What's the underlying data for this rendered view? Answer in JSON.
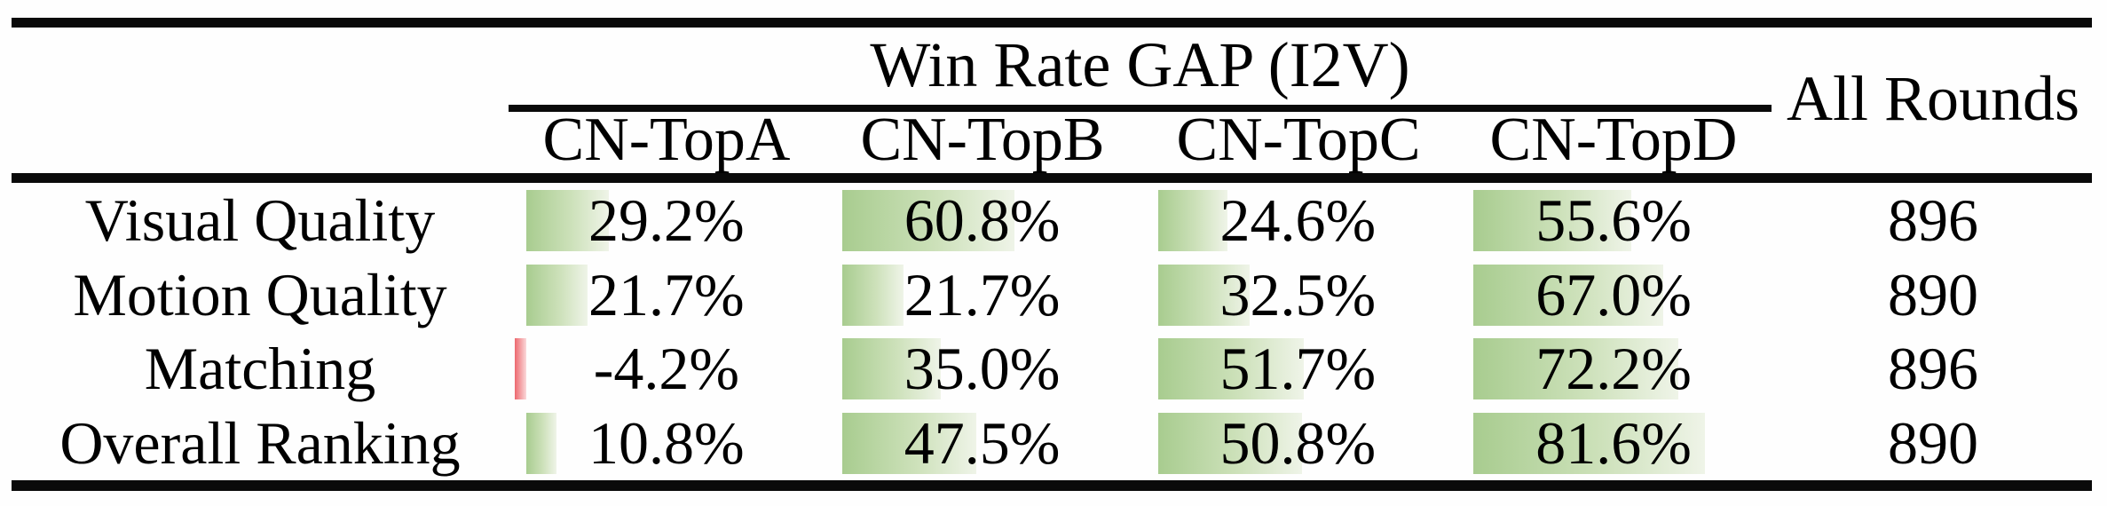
{
  "table": {
    "group_header": "Win Rate GAP (I2V)",
    "all_rounds_header": "All Rounds",
    "columns": [
      "CN-TopA",
      "CN-TopB",
      "CN-TopC",
      "CN-TopD"
    ],
    "rows": [
      {
        "label": "Visual Quality",
        "cells": [
          {
            "display": "29.2%",
            "value": 29.2
          },
          {
            "display": "60.8%",
            "value": 60.8
          },
          {
            "display": "24.6%",
            "value": 24.6
          },
          {
            "display": "55.6%",
            "value": 55.6
          }
        ],
        "all_rounds": "896"
      },
      {
        "label": "Motion Quality",
        "cells": [
          {
            "display": "21.7%",
            "value": 21.7
          },
          {
            "display": "21.7%",
            "value": 21.7
          },
          {
            "display": "32.5%",
            "value": 32.5
          },
          {
            "display": "67.0%",
            "value": 67.0
          }
        ],
        "all_rounds": "890"
      },
      {
        "label": "Matching",
        "cells": [
          {
            "display": "-4.2%",
            "value": -4.2
          },
          {
            "display": "35.0%",
            "value": 35.0
          },
          {
            "display": "51.7%",
            "value": 51.7
          },
          {
            "display": "72.2%",
            "value": 72.2
          }
        ],
        "all_rounds": "896"
      },
      {
        "label": "Overall Ranking",
        "cells": [
          {
            "display": "10.8%",
            "value": 10.8
          },
          {
            "display": "47.5%",
            "value": 47.5
          },
          {
            "display": "50.8%",
            "value": 50.8
          },
          {
            "display": "81.6%",
            "value": 81.6
          }
        ],
        "all_rounds": "890"
      }
    ],
    "colors": {
      "rule": "#0a0a0a",
      "bar_positive_left": "#a8cc8f",
      "bar_positive_mid": "#cde1ba",
      "bar_positive_right": "#eff4e8",
      "bar_negative_left": "#ec686e",
      "bar_negative_right": "#fbd9da",
      "text": "#000000"
    }
  },
  "chart_data": {
    "type": "table",
    "title": "Win Rate GAP (I2V)",
    "categories": [
      "Visual Quality",
      "Motion Quality",
      "Matching",
      "Overall Ranking"
    ],
    "series": [
      {
        "name": "CN-TopA",
        "values": [
          29.2,
          21.7,
          -4.2,
          10.8
        ],
        "unit": "%"
      },
      {
        "name": "CN-TopB",
        "values": [
          60.8,
          21.7,
          35.0,
          47.5
        ],
        "unit": "%"
      },
      {
        "name": "CN-TopC",
        "values": [
          24.6,
          32.5,
          51.7,
          50.8
        ],
        "unit": "%"
      },
      {
        "name": "CN-TopD",
        "values": [
          55.6,
          67.0,
          72.2,
          81.6
        ],
        "unit": "%"
      },
      {
        "name": "All Rounds",
        "values": [
          896,
          890,
          896,
          890
        ],
        "unit": "rounds"
      }
    ],
    "annotations": "In-cell data bars: green gradient proportional to positive win-rate gap (100% ~ full cell width), thin red bar for negative values",
    "bar_axis_range": [
      0,
      100
    ]
  }
}
